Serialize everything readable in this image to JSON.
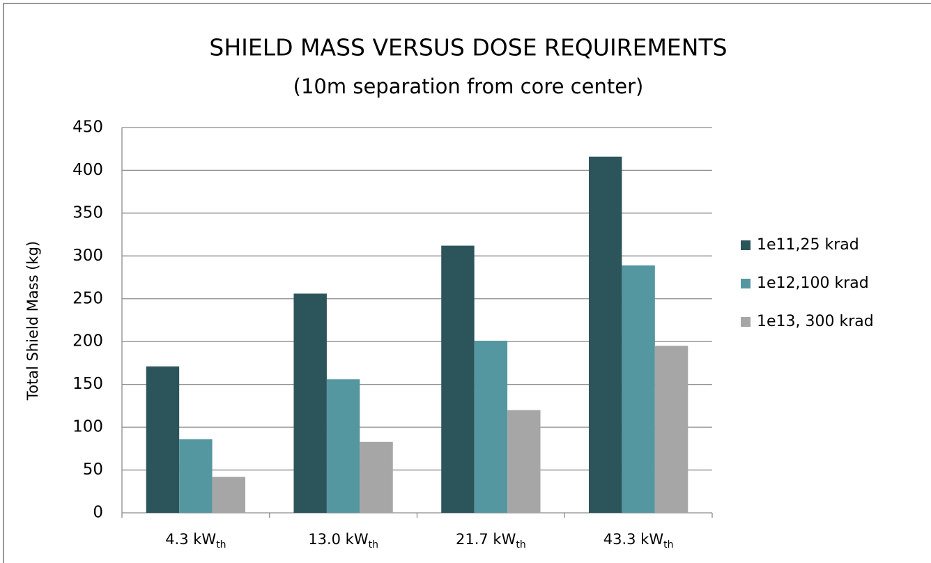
{
  "chart_data": {
    "type": "bar",
    "title": "SHIELD MASS VERSUS DOSE REQUIREMENTS",
    "subtitle": "(10m separation from core center)",
    "y_label": "Total Shield Mass (kg)",
    "categories": [
      {
        "label": "4.3 kW",
        "subscript": "th"
      },
      {
        "label": "13.0 kW",
        "subscript": "th"
      },
      {
        "label": "21.7 kW",
        "subscript": "th"
      },
      {
        "label": "43.3 kW",
        "subscript": "th"
      }
    ],
    "series": [
      {
        "name": "1e11,25 krad",
        "color": "#2c545b",
        "values": [
          171,
          256,
          312,
          416
        ]
      },
      {
        "name": "1e12,100 krad",
        "color": "#5597a0",
        "values": [
          86,
          156,
          201,
          289
        ]
      },
      {
        "name": "1e13, 300 krad",
        "color": "#a6a6a6",
        "values": [
          42,
          83,
          120,
          195
        ]
      }
    ],
    "ylim": [
      0,
      450
    ],
    "yticks": [
      0,
      50,
      100,
      150,
      200,
      250,
      300,
      350,
      400,
      450
    ],
    "grid": true,
    "legend": "right"
  }
}
